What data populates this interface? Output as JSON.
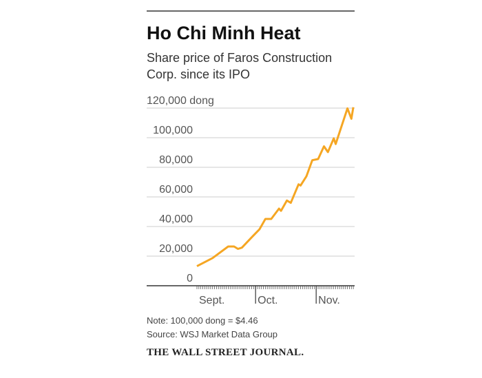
{
  "chart_data": {
    "type": "line",
    "title": "Ho Chi Minh Heat",
    "subtitle": [
      "Share price of Faros Construction",
      "Corp. since its IPO"
    ],
    "ylabel": "",
    "y_unit": "dong",
    "ylim": [
      0,
      120000
    ],
    "yticks": [
      0,
      20000,
      40000,
      60000,
      80000,
      100000,
      120000
    ],
    "ytick_labels": [
      "0",
      "20,000",
      "40,000",
      "60,000",
      "80,000",
      "100,000",
      "120,000 dong"
    ],
    "xtick_labels": [
      "Sept.",
      "Oct.",
      "Nov."
    ],
    "grid": true,
    "line_color": "#f5a623",
    "series": [
      {
        "x": [
          "Sep 1",
          "Sep 9",
          "Sep 17",
          "Sep 20",
          "Sep 22",
          "Sep 24",
          "Sep 29",
          "Oct 3",
          "Oct 6",
          "Oct 9",
          "Oct 13",
          "Oct 14",
          "Oct 17",
          "Oct 19",
          "Oct 23",
          "Oct 24",
          "Oct 27",
          "Oct 30",
          "Nov 2",
          "Nov 5",
          "Nov 7",
          "Nov 10",
          "Nov 11",
          "Nov 17",
          "Nov 19",
          "Nov 20"
        ],
        "values": [
          13200,
          18700,
          26500,
          26500,
          24900,
          25700,
          32700,
          38100,
          45100,
          45100,
          52100,
          50600,
          57600,
          56000,
          68500,
          67700,
          73900,
          84800,
          85600,
          94200,
          90300,
          99600,
          95700,
          119800,
          112800,
          120600
        ]
      }
    ],
    "notes": [
      "Note: 100,000 dong = $4.46",
      "Source: WSJ Market Data Group"
    ],
    "brand": "THE WALL STREET JOURNAL."
  }
}
